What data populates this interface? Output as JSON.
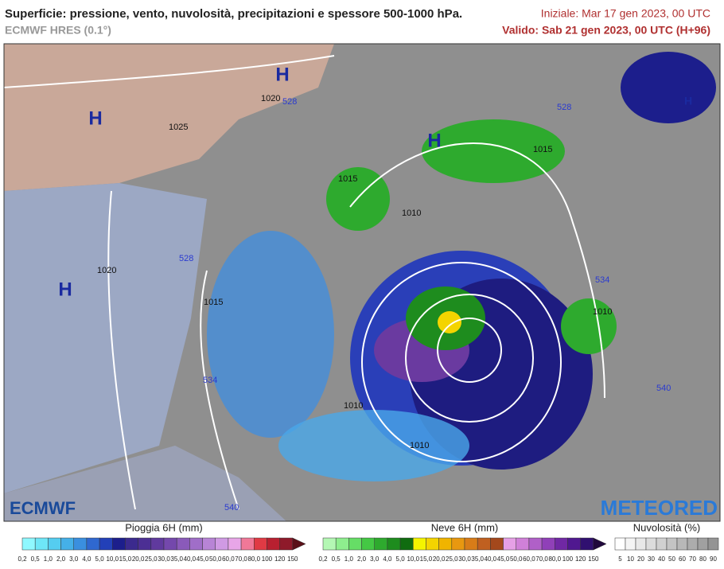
{
  "header": {
    "title": "Superficie: pressione, vento, nuvolosità, precipitazioni e spessore 500-1000 hPa.",
    "model": "ECMWF HRES (0.1°)",
    "initial": "Iniziale: Mar 17 gen 2023, 00 UTC",
    "valid": "Valido: Sab 21 gen 2023, 00 UTC (H+96)"
  },
  "map": {
    "pressure_centers": [
      "H",
      "H",
      "H",
      "H",
      "H"
    ],
    "isobar_labels": [
      "1020",
      "1025",
      "1020",
      "1015",
      "1010",
      "1015",
      "1010",
      "1010",
      "1015",
      "1010"
    ],
    "thickness_labels": [
      "528",
      "528",
      "528",
      "534",
      "534",
      "540",
      "540"
    ],
    "logos": {
      "left": "ECMWF",
      "right": "METEORED"
    }
  },
  "legends": {
    "rain": {
      "title": "Pioggia 6H (mm)",
      "ticks": [
        "0,2",
        "0,5",
        "1,0",
        "2,0",
        "3,0",
        "4,0",
        "5,0",
        "10,0",
        "15,0",
        "20,0",
        "25,0",
        "30,0",
        "35,0",
        "40,0",
        "45,0",
        "50,0",
        "60,0",
        "70,0",
        "80,0",
        "100",
        "120",
        "150"
      ],
      "colors": [
        "#8ff8ff",
        "#6ee6f7",
        "#55cdf0",
        "#45b0e8",
        "#3a8fdf",
        "#2f68d0",
        "#2240b8",
        "#1c1e8c",
        "#3b2a8e",
        "#4c2f94",
        "#603a9e",
        "#7448ac",
        "#8a5aba",
        "#a06ec8",
        "#b884d6",
        "#d09ae4",
        "#e8a6e8",
        "#f07898",
        "#e03a44",
        "#b82030",
        "#8e1a2a",
        "#5a1018"
      ]
    },
    "snow": {
      "title": "Neve 6H (mm)",
      "ticks": [
        "0,2",
        "0,5",
        "1,0",
        "2,0",
        "3,0",
        "4,0",
        "5,0",
        "10,0",
        "15,0",
        "20,0",
        "25,0",
        "30,0",
        "35,0",
        "40,0",
        "45,0",
        "50,0",
        "60,0",
        "70,0",
        "80,0",
        "100",
        "120",
        "150"
      ],
      "colors": [
        "#b4f7b4",
        "#8eee8e",
        "#66dd66",
        "#44c844",
        "#2eaa2e",
        "#1e8c1e",
        "#106c10",
        "#f4f400",
        "#f4d400",
        "#f0b400",
        "#e89810",
        "#d87c18",
        "#c06020",
        "#a4481c",
        "#e6a0e6",
        "#d080d8",
        "#b060c8",
        "#9040b8",
        "#7028a4",
        "#501890",
        "#301070",
        "#20083c"
      ]
    },
    "cloud": {
      "title": "Nuvolosità (%)",
      "ticks": [
        5,
        10,
        20,
        30,
        40,
        50,
        60,
        70,
        80,
        90
      ],
      "colors": [
        "#ffffff",
        "#f4f4f4",
        "#e8e8e8",
        "#dcdcdc",
        "#d0d0d0",
        "#c4c4c4",
        "#b8b8b8",
        "#acacac",
        "#a0a0a0",
        "#949494"
      ]
    }
  }
}
